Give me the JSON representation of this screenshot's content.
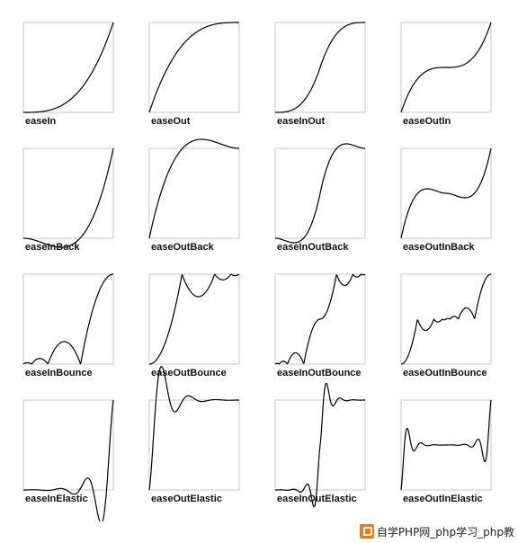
{
  "chart_data": [
    {
      "type": "line",
      "title": "easeIn",
      "ease": "easeIn"
    },
    {
      "type": "line",
      "title": "easeOut",
      "ease": "easeOut"
    },
    {
      "type": "line",
      "title": "easeInOut",
      "ease": "easeInOut"
    },
    {
      "type": "line",
      "title": "easeOutIn",
      "ease": "easeOutIn"
    },
    {
      "type": "line",
      "title": "easeInBack",
      "ease": "easeInBack"
    },
    {
      "type": "line",
      "title": "easeOutBack",
      "ease": "easeOutBack"
    },
    {
      "type": "line",
      "title": "easeInOutBack",
      "ease": "easeInOutBack"
    },
    {
      "type": "line",
      "title": "easeOutInBack",
      "ease": "easeOutInBack"
    },
    {
      "type": "line",
      "title": "easeInBounce",
      "ease": "easeInBounce"
    },
    {
      "type": "line",
      "title": "easeOutBounce",
      "ease": "easeOutBounce"
    },
    {
      "type": "line",
      "title": "easeInOutBounce",
      "ease": "easeInOutBounce"
    },
    {
      "type": "line",
      "title": "easeOutInBounce",
      "ease": "easeOutInBounce"
    },
    {
      "type": "line",
      "title": "easeInElastic",
      "ease": "easeInElastic"
    },
    {
      "type": "line",
      "title": "easeOutElastic",
      "ease": "easeOutElastic"
    },
    {
      "type": "line",
      "title": "easeInOutElastic",
      "ease": "easeInOutElastic"
    },
    {
      "type": "line",
      "title": "easeOutInElastic",
      "ease": "easeOutInElastic"
    }
  ],
  "watermark": {
    "text": "自学PHP网_php学习_php教",
    "color": "#f07a1a"
  },
  "colors": {
    "curve": "#000000",
    "frame": "#c8c8c8",
    "label": "#111111"
  }
}
